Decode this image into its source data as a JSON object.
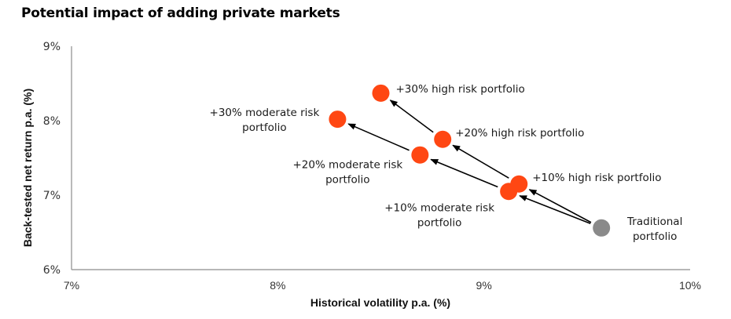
{
  "chart_data": {
    "type": "scatter",
    "title": "Potential impact of adding private markets",
    "xlabel": "Historical volatility p.a. (%)",
    "ylabel": "Back-tested net return p.a. (%)",
    "xlim": [
      7,
      10
    ],
    "ylim": [
      6,
      9
    ],
    "xticks": [
      7,
      8,
      9,
      10
    ],
    "yticks": [
      6,
      7,
      8,
      9
    ],
    "xtick_labels": [
      "7%",
      "8%",
      "9%",
      "10%"
    ],
    "ytick_labels": [
      "6%",
      "7%",
      "8%",
      "9%"
    ],
    "grid": false,
    "colors": {
      "private": "#ff4713",
      "traditional": "#8a8a8a",
      "arrow": "#000000",
      "axis": "#8c8c8c"
    },
    "points": [
      {
        "id": "traditional",
        "label": [
          "Traditional",
          "portfolio"
        ],
        "x": 9.57,
        "y": 6.56,
        "group": "traditional"
      },
      {
        "id": "high10",
        "label": [
          "+10% high risk portfolio"
        ],
        "x": 9.17,
        "y": 7.15,
        "group": "private"
      },
      {
        "id": "mod10",
        "label": [
          "+10% moderate risk",
          "portfolio"
        ],
        "x": 9.12,
        "y": 7.05,
        "group": "private"
      },
      {
        "id": "high20",
        "label": [
          "+20% high risk portfolio"
        ],
        "x": 8.8,
        "y": 7.75,
        "group": "private"
      },
      {
        "id": "mod20",
        "label": [
          "+20% moderate risk",
          "portfolio"
        ],
        "x": 8.69,
        "y": 7.54,
        "group": "private"
      },
      {
        "id": "high30",
        "label": [
          "+30% high risk portfolio"
        ],
        "x": 8.5,
        "y": 8.37,
        "group": "private"
      },
      {
        "id": "mod30",
        "label": [
          "+30% moderate risk",
          "portfolio"
        ],
        "x": 8.29,
        "y": 8.02,
        "group": "private"
      }
    ],
    "arrows": [
      {
        "from": "traditional",
        "to": "high10"
      },
      {
        "from": "traditional",
        "to": "mod10"
      },
      {
        "from": "high10",
        "to": "high20"
      },
      {
        "from": "mod10",
        "to": "mod20"
      },
      {
        "from": "high20",
        "to": "high30"
      },
      {
        "from": "mod20",
        "to": "mod30"
      }
    ]
  }
}
